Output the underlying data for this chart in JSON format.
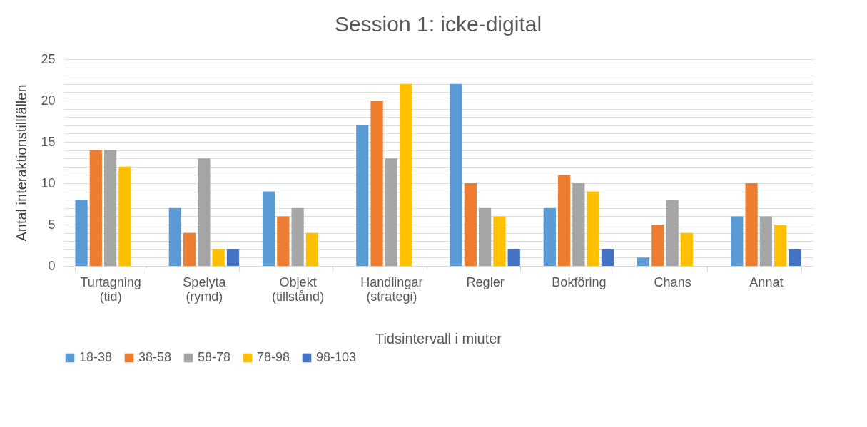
{
  "chart_data": {
    "type": "bar",
    "title": "Session 1: icke-digital",
    "xlabel": "Tidsintervall i miuter",
    "ylabel": "Antal interaktionstillfällen",
    "categories": [
      "Turtagning (tid)",
      "Spelyta (rymd)",
      "Objekt (tillstånd)",
      "Handlingar (strategi)",
      "Regler",
      "Bokföring",
      "Chans",
      "Annat"
    ],
    "series": [
      {
        "name": "18-38",
        "color": "#5b9bd5",
        "values": [
          8,
          7,
          9,
          17,
          22,
          7,
          1,
          6
        ]
      },
      {
        "name": "38-58",
        "color": "#ed7d31",
        "values": [
          14,
          4,
          6,
          20,
          10,
          11,
          5,
          10
        ]
      },
      {
        "name": "58-78",
        "color": "#a5a5a5",
        "values": [
          14,
          13,
          7,
          13,
          7,
          10,
          8,
          6
        ]
      },
      {
        "name": "78-98",
        "color": "#ffc000",
        "values": [
          12,
          2,
          4,
          22,
          6,
          9,
          4,
          5
        ]
      },
      {
        "name": "98-103",
        "color": "#4472c4",
        "values": [
          null,
          2,
          null,
          null,
          2,
          2,
          null,
          2
        ]
      }
    ],
    "ylim": [
      0,
      25
    ],
    "yticks": [
      0,
      {
        "value": 1,
        "label": null
      },
      {
        "value": 2,
        "label": null
      },
      {
        "value": 3,
        "label": null
      },
      {
        "value": 4,
        "label": null
      },
      5,
      {
        "value": 6,
        "label": null
      },
      {
        "value": 7,
        "label": null
      },
      {
        "value": 8,
        "label": null
      },
      {
        "value": 9,
        "label": null
      },
      10,
      {
        "value": 11,
        "label": null
      },
      {
        "value": 12,
        "label": null
      },
      {
        "value": 13,
        "label": null
      },
      {
        "value": 14,
        "label": null
      },
      15,
      {
        "value": 16,
        "label": null
      },
      {
        "value": 17,
        "label": null
      },
      {
        "value": 18,
        "label": null
      },
      {
        "value": 19,
        "label": null
      },
      20,
      {
        "value": 21,
        "label": null
      },
      {
        "value": 22,
        "label": null
      },
      {
        "value": 23,
        "label": null
      },
      {
        "value": 24,
        "label": null
      },
      25
    ],
    "grid": "y",
    "legend": "bottom"
  }
}
